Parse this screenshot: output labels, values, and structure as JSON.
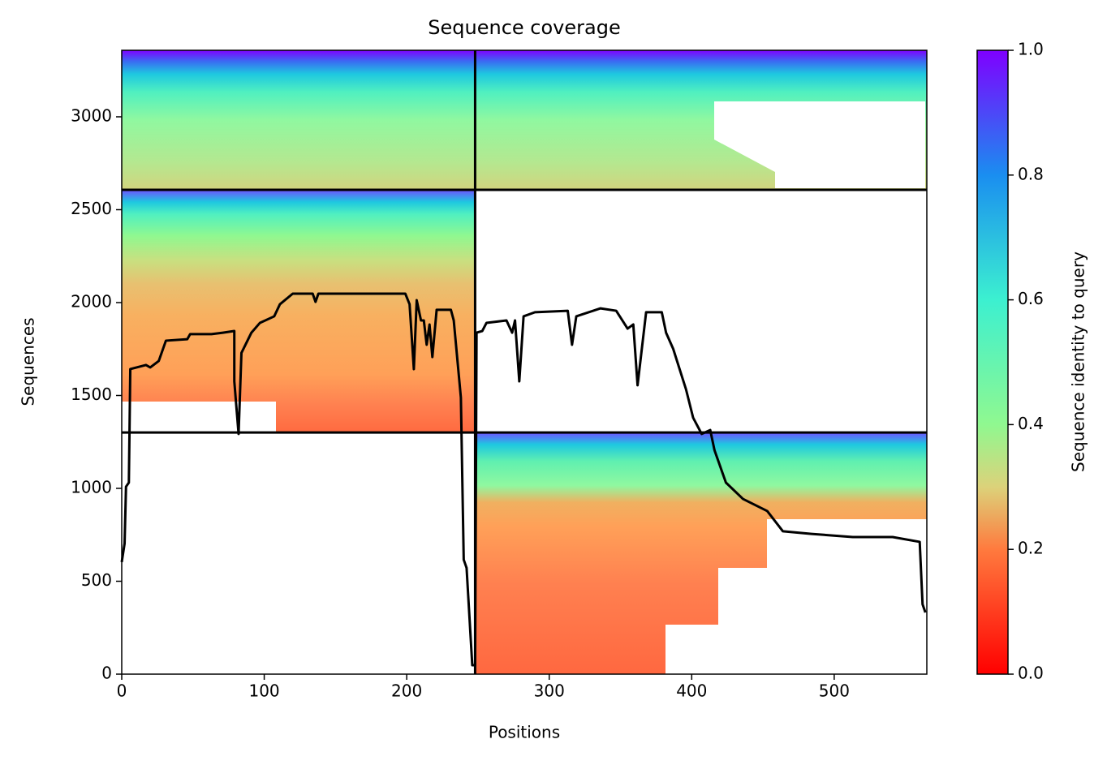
{
  "chart_data": {
    "type": "line",
    "title": "Sequence coverage",
    "x_label": "Positions",
    "y_label": "Sequences",
    "xlim": [
      0,
      565
    ],
    "ylim": [
      0,
      3358
    ],
    "xticks": [
      0,
      100,
      200,
      300,
      400,
      500
    ],
    "yticks": [
      0,
      500,
      1000,
      1500,
      2000,
      2500,
      3000
    ],
    "dividers": {
      "x": [
        248
      ],
      "y": [
        1301,
        2607
      ]
    },
    "series": [
      {
        "name": "Coverage",
        "color": "#000000",
        "x": [
          0,
          2,
          3,
          5,
          6,
          17,
          20,
          26,
          31,
          46,
          48,
          63,
          71,
          79,
          79,
          82,
          84,
          91,
          97,
          107,
          111,
          120,
          134,
          136,
          138,
          199,
          202,
          205,
          207,
          210,
          212,
          214,
          216,
          218,
          221,
          231,
          233,
          238,
          240,
          242,
          244,
          246,
          248,
          249,
          253,
          256,
          270,
          274,
          276,
          279,
          282,
          290,
          313,
          316,
          319,
          336,
          347,
          355,
          359,
          362,
          368,
          379,
          382,
          387,
          396,
          401,
          407,
          413,
          416,
          424,
          436,
          453,
          464,
          484,
          513,
          541,
          560,
          562,
          564
        ],
        "values": [
          603,
          703,
          1009,
          1031,
          1642,
          1664,
          1651,
          1686,
          1795,
          1803,
          1830,
          1830,
          1838,
          1847,
          1576,
          1293,
          1729,
          1838,
          1891,
          1926,
          1991,
          2048,
          2048,
          2004,
          2048,
          2048,
          1991,
          1642,
          2013,
          1904,
          1904,
          1773,
          1882,
          1707,
          1961,
          1961,
          1904,
          1489,
          616,
          572,
          310,
          48,
          48,
          1838,
          1847,
          1891,
          1904,
          1838,
          1904,
          1576,
          1926,
          1948,
          1956,
          1773,
          1926,
          1969,
          1956,
          1860,
          1882,
          1555,
          1948,
          1948,
          1838,
          1751,
          1533,
          1380,
          1293,
          1314,
          1205,
          1031,
          943,
          878,
          769,
          755,
          738,
          738,
          712,
          376,
          332
        ]
      }
    ],
    "colorbar": {
      "label": "Sequence identity to query",
      "lim": [
        0,
        1
      ],
      "ticks": [
        {
          "value": 0,
          "label": "0.0"
        },
        0.2,
        0.4,
        0.6,
        0.8,
        {
          "value": 1,
          "label": "1.0"
        }
      ]
    }
  }
}
